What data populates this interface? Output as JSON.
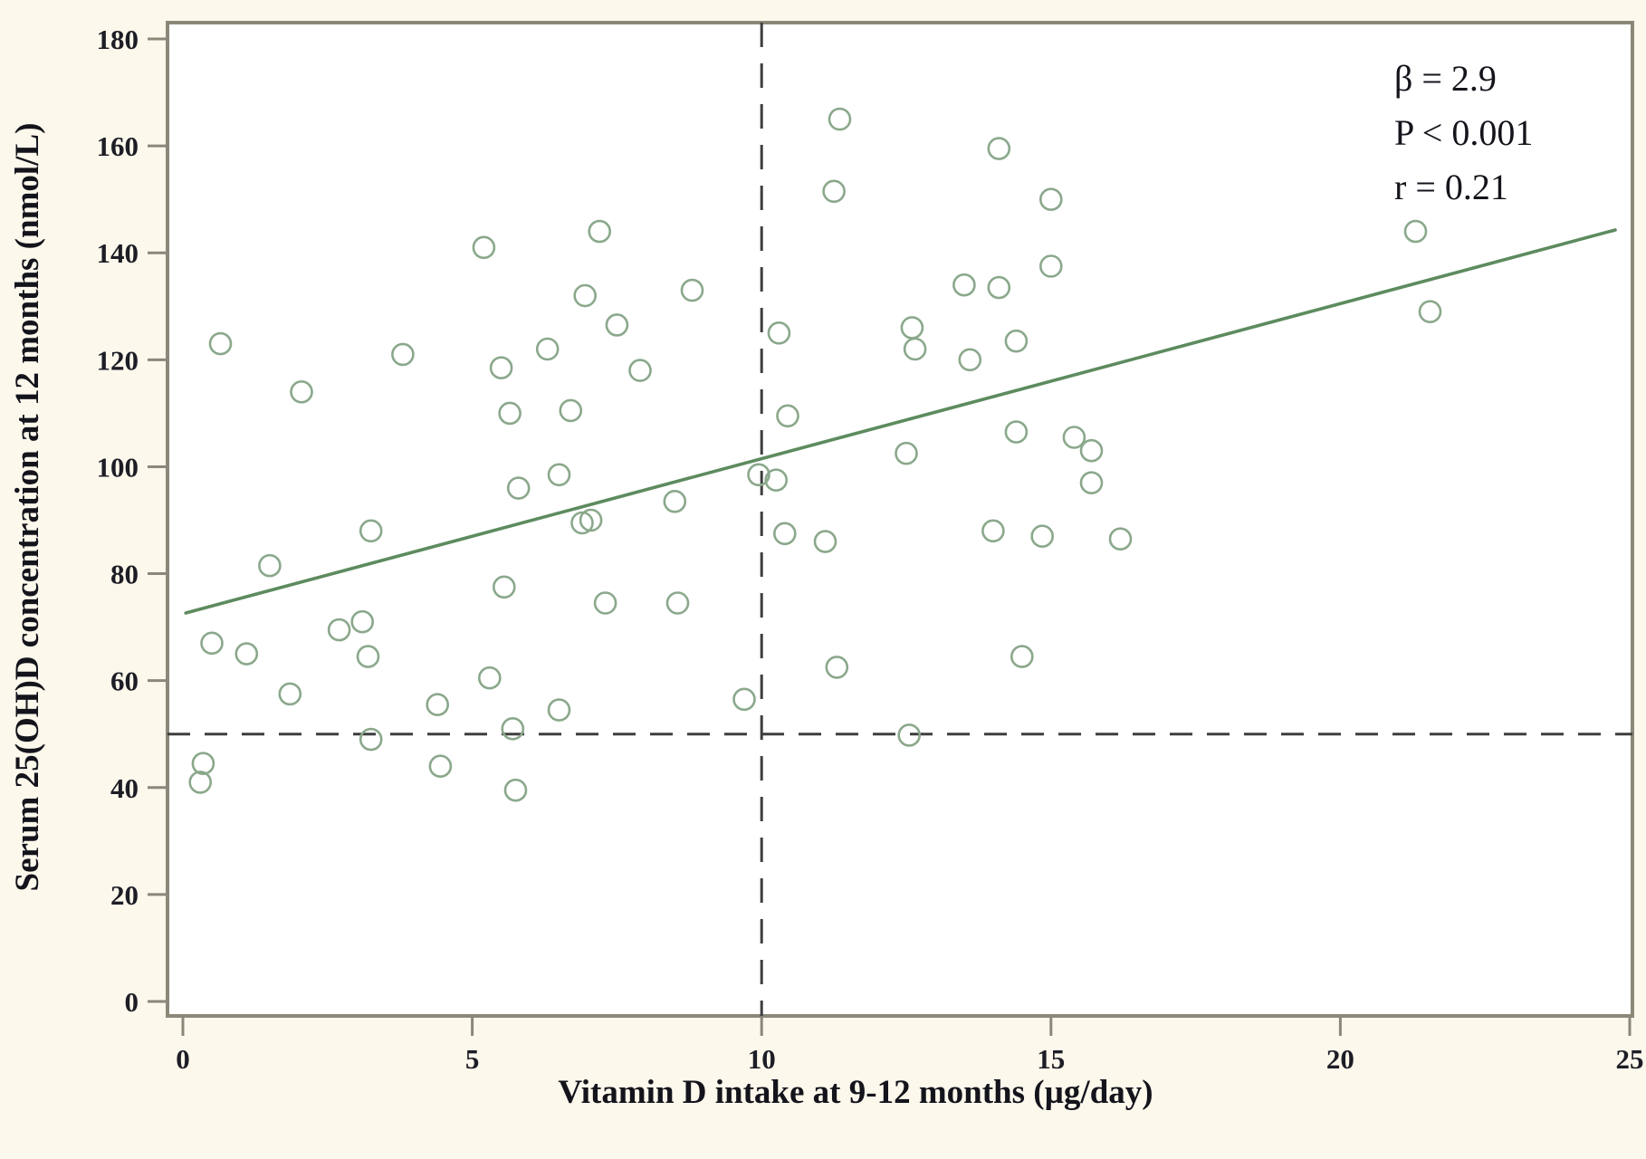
{
  "figure": {
    "kind": "scatter-plot-figure",
    "annotation": {
      "line1": "β = 2.9",
      "line2": "P < 0.001",
      "line3": "r = 0.21"
    }
  },
  "chart_data": {
    "type": "scatter",
    "title": "",
    "xlabel": "Vitamin D intake at 9-12 months (µg/day)",
    "ylabel": "Serum 25(OH)D concentration at 12 months (nmol/L)",
    "xlim": [
      0,
      25.35
    ],
    "ylim": [
      0,
      186
    ],
    "x_ticks": [
      0,
      5,
      10,
      15,
      20,
      25
    ],
    "y_ticks": [
      0,
      20,
      40,
      60,
      80,
      100,
      120,
      140,
      160,
      180
    ],
    "grid": false,
    "legend_position": "none",
    "points": [
      [
        0.3,
        41
      ],
      [
        0.35,
        44.5
      ],
      [
        0.5,
        67
      ],
      [
        0.65,
        123
      ],
      [
        1.1,
        65
      ],
      [
        1.5,
        81.5
      ],
      [
        1.85,
        57.5
      ],
      [
        2.05,
        114
      ],
      [
        2.7,
        69.5
      ],
      [
        3.1,
        71
      ],
      [
        3.2,
        64.5
      ],
      [
        3.25,
        88
      ],
      [
        3.25,
        49
      ],
      [
        3.8,
        121
      ],
      [
        4.4,
        55.5
      ],
      [
        4.45,
        44
      ],
      [
        5.2,
        141
      ],
      [
        5.3,
        60.5
      ],
      [
        5.5,
        118.5
      ],
      [
        5.55,
        77.5
      ],
      [
        5.65,
        110
      ],
      [
        5.7,
        51
      ],
      [
        5.75,
        39.5
      ],
      [
        5.8,
        96
      ],
      [
        6.3,
        122
      ],
      [
        6.5,
        54.5
      ],
      [
        6.5,
        98.5
      ],
      [
        6.7,
        110.5
      ],
      [
        6.9,
        89.5
      ],
      [
        7.05,
        90
      ],
      [
        6.95,
        132
      ],
      [
        7.2,
        144
      ],
      [
        7.3,
        74.5
      ],
      [
        7.5,
        126.5
      ],
      [
        7.9,
        118
      ],
      [
        8.5,
        93.5
      ],
      [
        8.55,
        74.5
      ],
      [
        8.8,
        133
      ],
      [
        9.7,
        56.5
      ],
      [
        9.95,
        98.5
      ],
      [
        10.25,
        97.5
      ],
      [
        10.3,
        125
      ],
      [
        10.45,
        109.5
      ],
      [
        10.4,
        87.5
      ],
      [
        11.1,
        86
      ],
      [
        11.25,
        151.5
      ],
      [
        11.35,
        165
      ],
      [
        11.3,
        62.5
      ],
      [
        12.5,
        102.5
      ],
      [
        12.55,
        49.8
      ],
      [
        12.6,
        126
      ],
      [
        12.65,
        122
      ],
      [
        13.5,
        134
      ],
      [
        13.6,
        120
      ],
      [
        14.0,
        88
      ],
      [
        14.1,
        159.5
      ],
      [
        14.1,
        133.5
      ],
      [
        14.4,
        123.5
      ],
      [
        14.4,
        106.5
      ],
      [
        14.5,
        64.5
      ],
      [
        14.85,
        87
      ],
      [
        15.0,
        137.5
      ],
      [
        15.0,
        150
      ],
      [
        15.4,
        105.5
      ],
      [
        15.7,
        103
      ],
      [
        15.7,
        97
      ],
      [
        16.2,
        86.5
      ],
      [
        21.3,
        144
      ],
      [
        21.55,
        129
      ]
    ],
    "trend_line": {
      "slope": 2.9,
      "intercept": 72.5,
      "x_start": 0.05,
      "x_end": 24.75
    },
    "reference_lines": {
      "horizontal_y": 50,
      "vertical_x": 10
    },
    "annotation": [
      "β = 2.9",
      "P < 0.001",
      "r = 0.21"
    ],
    "colors": {
      "point_stroke": "#8aa88b",
      "trend": "#5d8b5e",
      "reference": "#3e3e3e",
      "axis": "#8b8878",
      "text": "#1d1d26",
      "background": "#fcf8ec",
      "plot_background": "#ffffff"
    }
  }
}
